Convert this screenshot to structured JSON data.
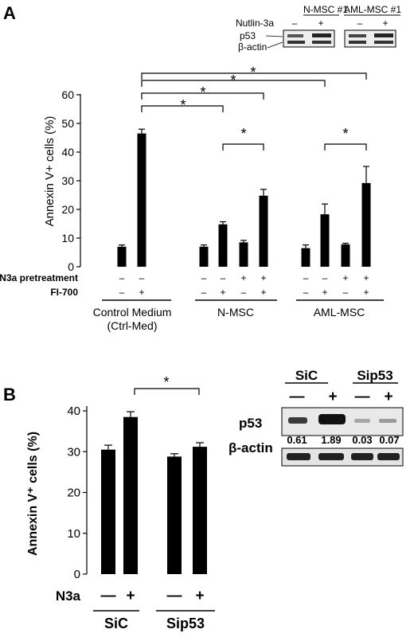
{
  "panels": {
    "a_label": "A",
    "b_label": "B"
  },
  "blot_a": {
    "groups": [
      "N-MSC #1",
      "AML-MSC #1"
    ],
    "treatment_label": "Nutlin-3a",
    "signs": [
      "–",
      "+",
      "–",
      "+"
    ],
    "rows": [
      "p53",
      "β-actin"
    ]
  },
  "blot_b": {
    "groups": [
      "SiC",
      "Sip53"
    ],
    "signs": [
      "—",
      "+",
      "—",
      "+"
    ],
    "rows": [
      "p53",
      "β-actin"
    ],
    "p53_values": [
      "0.61",
      "1.89",
      "0.03",
      "0.07"
    ]
  },
  "star": "*",
  "chart_data": [
    {
      "type": "bar",
      "panel": "A",
      "ylabel": "Annexin V+ cells (%)",
      "ylim": [
        0,
        60
      ],
      "yticks": [
        0,
        10,
        20,
        30,
        40,
        50,
        60
      ],
      "categories": [
        "Control Medium (Ctrl-Med) −/−",
        "Control Medium (Ctrl-Med) −/+",
        "N-MSC −/−",
        "N-MSC −/+",
        "N-MSC +/−",
        "N-MSC +/+",
        "AML-MSC −/−",
        "AML-MSC −/+",
        "AML-MSC +/−",
        "AML-MSC +/+"
      ],
      "values": [
        7,
        46.5,
        7,
        14.8,
        8.5,
        24.8,
        6.5,
        18.3,
        7.8,
        29.2
      ],
      "errors": [
        0.6,
        1.5,
        0.6,
        0.9,
        0.7,
        2.2,
        1.1,
        3.6,
        0.4,
        5.8
      ],
      "row_labels": [
        "N3a pretreatment",
        "FI-700"
      ],
      "n3a_signs": [
        "–",
        "–",
        "–",
        "–",
        "+",
        "+",
        "–",
        "–",
        "+",
        "+"
      ],
      "fi700_signs": [
        "–",
        "+",
        "–",
        "+",
        "–",
        "+",
        "–",
        "+",
        "–",
        "+"
      ],
      "groups": [
        {
          "line1": "Control Medium",
          "line2": "(Ctrl-Med)"
        },
        {
          "line1": "N-MSC",
          "line2": ""
        },
        {
          "line1": "AML-MSC",
          "line2": ""
        }
      ],
      "grid": false
    },
    {
      "type": "bar",
      "panel": "B",
      "ylabel": "Annexin V⁺ cells (%)",
      "ylim": [
        0,
        40
      ],
      "yticks": [
        0,
        10,
        20,
        30,
        40
      ],
      "categories": [
        "SiC −",
        "SiC +",
        "Sip53 −",
        "Sip53 +"
      ],
      "values": [
        30.5,
        38.5,
        28.8,
        31.2
      ],
      "errors": [
        1.1,
        1.3,
        0.7,
        1.0
      ],
      "row_label": "N3a",
      "signs": [
        "—",
        "+",
        "—",
        "+"
      ],
      "groups": [
        "SiC",
        "Sip53"
      ],
      "grid": false
    }
  ]
}
